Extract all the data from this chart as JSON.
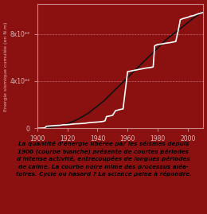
{
  "background_color": "#8B1010",
  "plot_bg_color": "#8B1010",
  "title": "",
  "ylabel": "Energie sismique cumulée (en N.m)",
  "xlabel": "",
  "xlim": [
    1900,
    2010
  ],
  "ylim": [
    0,
    1.05e+23
  ],
  "yticks": [
    0,
    4e+22,
    8e+22
  ],
  "ytick_labels": [
    "0",
    "4x10²²",
    "8x10²²"
  ],
  "xticks": [
    1900,
    1920,
    1940,
    1960,
    1980,
    2000
  ],
  "caption_color": "#000000",
  "caption_bg": "#d4c8a0",
  "caption_text": "La quantité d'énergie libérée par les séismes depuis\n1900 (courbe blanche) présente de courtes périodes\nd'intense activité, entrecoupées de longues périodes\nde calme. La courbe noire mime des processus aléa-\ntoires. Cycle ou hasard ? La science peine à répondre.",
  "grid_color": "#cc9999",
  "axis_color": "#cc8888",
  "tick_color": "#ddbbbb",
  "white_curve_color": "#ffffff",
  "black_curve_color": "#111111",
  "white_curve_x": [
    1900,
    1902,
    1905,
    1906,
    1908,
    1910,
    1912,
    1915,
    1917,
    1920,
    1922,
    1923,
    1925,
    1928,
    1930,
    1932,
    1933,
    1935,
    1938,
    1940,
    1942,
    1944,
    1945,
    1946,
    1948,
    1950,
    1952,
    1955,
    1957,
    1960,
    1962,
    1964,
    1966,
    1968,
    1970,
    1972,
    1975,
    1977,
    1978,
    1980,
    1983,
    1985,
    1988,
    1990,
    1992,
    1994,
    1995,
    1997,
    2000,
    2002,
    2004,
    2005,
    2007,
    2010
  ],
  "white_curve_y": [
    0,
    2e+20,
    4e+20,
    1.8e+21,
    2e+21,
    2.2e+21,
    2.4e+21,
    2.6e+21,
    3e+21,
    3.2e+21,
    3.4e+21,
    3.6e+21,
    3.8e+21,
    4e+21,
    4.2e+21,
    4.4e+21,
    4.6e+21,
    5e+21,
    5.2e+21,
    5.4e+21,
    5.6e+21,
    6e+21,
    6.4e+21,
    1e+22,
    1.05e+22,
    1.1e+22,
    1.5e+22,
    1.6e+22,
    1.65e+22,
    4.8e+22,
    4.85e+22,
    4.9e+22,
    4.95e+22,
    5e+22,
    5.05e+22,
    5.1e+22,
    5.15e+22,
    5.2e+22,
    7e+22,
    7.1e+22,
    7.15e+22,
    7.2e+22,
    7.25e+22,
    7.3e+22,
    7.35e+22,
    8.5e+22,
    9.2e+22,
    9.3e+22,
    9.4e+22,
    9.5e+22,
    9.55e+22,
    9.6e+22,
    9.7e+22,
    9.8e+22
  ],
  "black_curve_x": [
    1900,
    1902,
    1904,
    1906,
    1908,
    1910,
    1912,
    1914,
    1916,
    1918,
    1920,
    1922,
    1924,
    1926,
    1928,
    1930,
    1932,
    1934,
    1936,
    1938,
    1940,
    1942,
    1944,
    1946,
    1948,
    1950,
    1952,
    1954,
    1956,
    1958,
    1960,
    1962,
    1964,
    1966,
    1968,
    1970,
    1972,
    1974,
    1976,
    1978,
    1980,
    1982,
    1984,
    1986,
    1988,
    1990,
    1992,
    1994,
    1996,
    1998,
    2000,
    2002,
    2004,
    2006,
    2008,
    2010
  ],
  "black_curve_y": [
    0,
    1e+20,
    3e+20,
    5e+20,
    8e+20,
    1.2e+21,
    1.6e+21,
    2e+21,
    2.6e+21,
    3.2e+21,
    4e+21,
    5e+21,
    6e+21,
    7.2e+21,
    8.5e+21,
    1e+22,
    1.15e+22,
    1.3e+22,
    1.5e+22,
    1.7e+22,
    1.9e+22,
    2.1e+22,
    2.3e+22,
    2.55e+22,
    2.8e+22,
    3.05e+22,
    3.3e+22,
    3.55e+22,
    3.8e+22,
    4.05e+22,
    4.3e+22,
    4.55e+22,
    4.8e+22,
    5.05e+22,
    5.3e+22,
    5.55e+22,
    5.8e+22,
    6.05e+22,
    6.3e+22,
    6.55e+22,
    6.8e+22,
    7.05e+22,
    7.3e+22,
    7.55e+22,
    7.75e+22,
    7.95e+22,
    8.15e+22,
    8.35e+22,
    8.55e+22,
    8.75e+22,
    8.95e+22,
    9.15e+22,
    9.35e+22,
    9.55e+22,
    9.7e+22,
    9.85e+22
  ]
}
